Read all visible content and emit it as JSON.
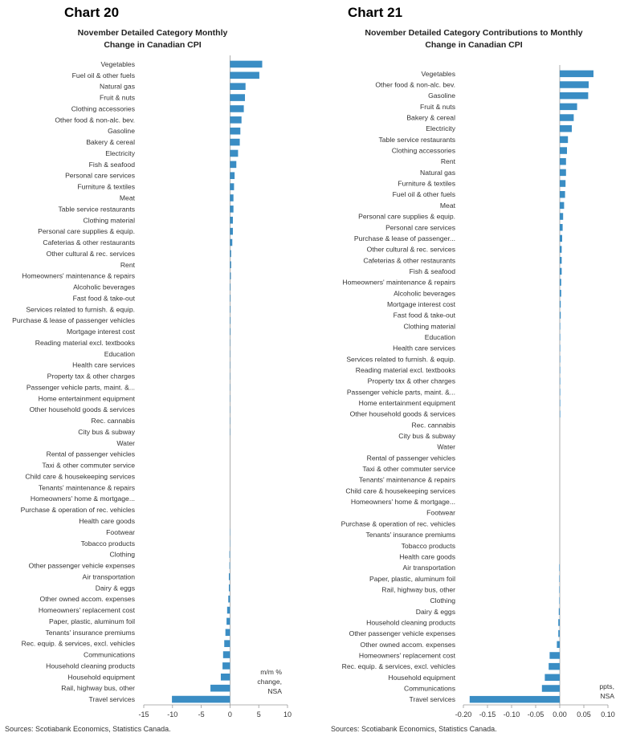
{
  "chart_data": [
    {
      "type": "bar",
      "orientation": "horizontal",
      "chart_number": "Chart 20",
      "title": "November Detailed Category Monthly",
      "title_line2": "Change in Canadian CPI",
      "unit_note": [
        "m/m %",
        "change,",
        "NSA"
      ],
      "xlim": [
        -15,
        10
      ],
      "xticks": [
        -15,
        -10,
        -5,
        0,
        5,
        10
      ],
      "bar_color": "#3a8dc4",
      "categories": [
        "Vegetables",
        "Fuel oil & other fuels",
        "Natural gas",
        "Fruit & nuts",
        "Clothing accessories",
        "Other food & non-alc. bev.",
        "Gasoline",
        "Bakery & cereal",
        "Electricity",
        "Fish & seafood",
        "Personal care services",
        "Furniture & textiles",
        "Meat",
        "Table service restaurants",
        "Clothing material",
        "Personal care supplies & equip.",
        "Cafeterias & other restaurants",
        "Other cultural & rec. services",
        "Rent",
        "Homeowners' maintenance & repairs",
        "Alcoholic beverages",
        "Fast food & take-out",
        "Services related to furnish. & equip.",
        "Purchase & lease of passenger vehicles",
        "Mortgage interest cost",
        "Reading material excl. textbooks",
        "Education",
        "Health care services",
        "Property tax & other charges",
        "Passenger vehicle parts, maint. &...",
        "Home entertainment equipment",
        "Other household goods & services",
        "Rec. cannabis",
        "City bus & subway",
        "Water",
        "Rental of passenger vehicles",
        "Taxi & other commuter service",
        "Child care & housekeeping services",
        "Tenants' maintenance & repairs",
        "Homeowners' home & mortgage...",
        "Purchase & operation of rec. vehicles",
        "Health care goods",
        "Footwear",
        "Tobacco products",
        "Clothing",
        "Other passenger vehicle expenses",
        "Air transportation",
        "Dairy & eggs",
        "Other owned accom. expenses",
        "Homeowners' replacement cost",
        "Paper, plastic, aluminum foil",
        "Tenants' insurance premiums",
        "Rec. equip. & services, excl. vehicles",
        "Communications",
        "Household cleaning products",
        "Household equipment",
        "Rail, highway bus, other",
        "Travel services"
      ],
      "values": [
        5.6,
        5.1,
        2.7,
        2.6,
        2.4,
        2.0,
        1.8,
        1.7,
        1.4,
        1.1,
        0.8,
        0.7,
        0.6,
        0.6,
        0.5,
        0.5,
        0.4,
        0.2,
        0.2,
        0.15,
        0.1,
        0.1,
        0.1,
        0.1,
        0.1,
        0.05,
        0.05,
        0.05,
        0.05,
        0.05,
        0.05,
        0.05,
        0.05,
        0.05,
        0.0,
        0.0,
        0.0,
        0.0,
        0.0,
        0.0,
        0.0,
        0.0,
        -0.05,
        -0.05,
        -0.1,
        -0.1,
        -0.2,
        -0.2,
        -0.3,
        -0.5,
        -0.6,
        -0.8,
        -1.0,
        -1.2,
        -1.3,
        -1.6,
        -3.4,
        -10.1
      ]
    },
    {
      "type": "bar",
      "orientation": "horizontal",
      "chart_number": "Chart 21",
      "title": "November Detailed Category Contributions to Monthly",
      "title_line2": "Change in Canadian CPI",
      "unit_note": [
        "ppts,",
        "NSA"
      ],
      "xlim": [
        -0.2,
        0.1
      ],
      "xticks": [
        -0.2,
        -0.15,
        -0.1,
        -0.05,
        0.0,
        0.05,
        0.1
      ],
      "xtick_labels": [
        "-0.20",
        "-0.15",
        "-0.10",
        "-0.05",
        "0.00",
        "0.05",
        "0.10"
      ],
      "bar_color": "#3a8dc4",
      "categories": [
        "Vegetables",
        "Other food & non-alc. bev.",
        "Gasoline",
        "Fruit & nuts",
        "Bakery & cereal",
        "Electricity",
        "Table service restaurants",
        "Clothing accessories",
        "Rent",
        "Natural gas",
        "Furniture & textiles",
        "Fuel oil & other fuels",
        "Meat",
        "Personal care supplies & equip.",
        "Personal care services",
        "Purchase & lease of passenger...",
        "Other cultural & rec. services",
        "Cafeterias & other restaurants",
        "Fish & seafood",
        "Homeowners' maintenance & repairs",
        "Alcoholic beverages",
        "Mortgage interest cost",
        "Fast food & take-out",
        "Clothing material",
        "Education",
        "Health care services",
        "Services related to furnish. & equip.",
        "Reading material excl. textbooks",
        "Property tax & other charges",
        "Passenger vehicle parts, maint. &...",
        "Home entertainment equipment",
        "Other household goods & services",
        "Rec. cannabis",
        "City bus & subway",
        "Water",
        "Rental of passenger vehicles",
        "Taxi & other commuter service",
        "Tenants' maintenance & repairs",
        "Child care & housekeeping services",
        "Homeowners' home & mortgage...",
        "Footwear",
        "Purchase & operation of rec. vehicles",
        "Tenants' insurance premiums",
        "Tobacco products",
        "Health care goods",
        "Air transportation",
        "Paper, plastic, aluminum foil",
        "Rail, highway bus, other",
        "Clothing",
        "Dairy & eggs",
        "Household cleaning products",
        "Other passenger vehicle expenses",
        "Other owned accom. expenses",
        "Homeowners' replacement cost",
        "Rec. equip. & services, excl. vehicles",
        "Household equipment",
        "Communications",
        "Travel services"
      ],
      "values": [
        0.07,
        0.06,
        0.059,
        0.036,
        0.029,
        0.025,
        0.017,
        0.015,
        0.013,
        0.013,
        0.012,
        0.011,
        0.009,
        0.007,
        0.006,
        0.005,
        0.004,
        0.004,
        0.004,
        0.003,
        0.003,
        0.002,
        0.002,
        0.001,
        0.001,
        0.001,
        0.001,
        0.001,
        0.001,
        0.001,
        0.001,
        0.001,
        0.0,
        0.0,
        0.0,
        0.0,
        0.0,
        0.0,
        0.0,
        0.0,
        0.0,
        0.0,
        0.0,
        0.0,
        0.0,
        -0.001,
        -0.001,
        -0.001,
        -0.001,
        -0.002,
        -0.003,
        -0.003,
        -0.006,
        -0.021,
        -0.023,
        -0.031,
        -0.037,
        -0.187
      ]
    }
  ],
  "source_left": "Sources: Scotiabank Economics, Statistics Canada.",
  "source_right": "Sources: Scotiabank Economics, Statistics Canada."
}
